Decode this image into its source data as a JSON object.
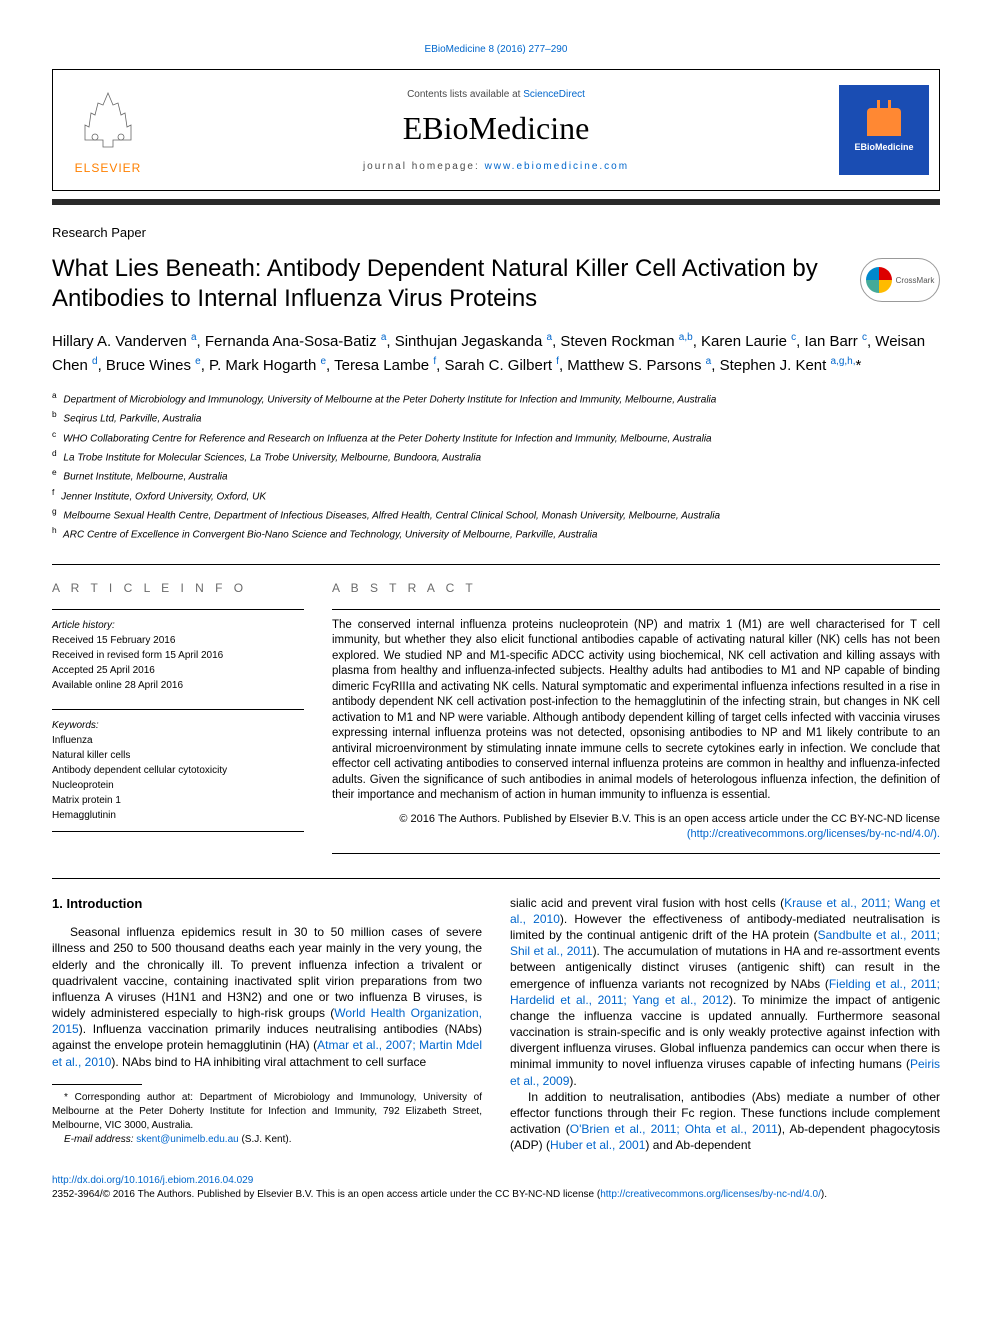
{
  "colors": {
    "link": "#0066cc",
    "text": "#000000",
    "divider_dark": "#2a2a2a",
    "grey_text": "#6a6a6a",
    "elsevier_orange": "#ff8000",
    "journal_logo_bg": "#1a4db3",
    "journal_logo_icon": "#ff8833"
  },
  "top_link": "EBioMedicine 8 (2016) 277–290",
  "header": {
    "contents_prefix": "Contents lists available at ",
    "contents_link": "ScienceDirect",
    "journal_name": "EBioMedicine",
    "homepage_prefix": "journal homepage: ",
    "homepage_link": "www.ebiomedicine.com",
    "elsevier_label": "ELSEVIER",
    "journal_logo_text": "EBioMedicine"
  },
  "article_type": "Research Paper",
  "title": "What Lies Beneath: Antibody Dependent Natural Killer Cell Activation by Antibodies to Internal Influenza Virus Proteins",
  "crossmark_label": "CrossMark",
  "authors_html": "Hillary A. Vanderven <sup>a</sup>, Fernanda Ana-Sosa-Batiz <sup>a</sup>, Sinthujan Jegaskanda <sup>a</sup>, Steven Rockman <sup>a,b</sup>, Karen Laurie <sup>c</sup>, Ian Barr <sup>c</sup>, Weisan Chen <sup>d</sup>, Bruce Wines <sup>e</sup>, P. Mark Hogarth <sup>e</sup>, Teresa Lambe <sup>f</sup>, Sarah C. Gilbert <sup>f</sup>, Matthew S. Parsons <sup>a</sup>, Stephen J. Kent <sup>a,g,h,</sup>*",
  "affiliations": [
    {
      "key": "a",
      "text": "Department of Microbiology and Immunology, University of Melbourne at the Peter Doherty Institute for Infection and Immunity, Melbourne, Australia"
    },
    {
      "key": "b",
      "text": "Seqirus Ltd, Parkville, Australia"
    },
    {
      "key": "c",
      "text": "WHO Collaborating Centre for Reference and Research on Influenza at the Peter Doherty Institute for Infection and Immunity, Melbourne, Australia"
    },
    {
      "key": "d",
      "text": "La Trobe Institute for Molecular Sciences, La Trobe University, Melbourne, Bundoora, Australia"
    },
    {
      "key": "e",
      "text": "Burnet Institute, Melbourne, Australia"
    },
    {
      "key": "f",
      "text": "Jenner Institute, Oxford University, Oxford, UK"
    },
    {
      "key": "g",
      "text": "Melbourne Sexual Health Centre, Department of Infectious Diseases, Alfred Health, Central Clinical School, Monash University, Melbourne, Australia"
    },
    {
      "key": "h",
      "text": "ARC Centre of Excellence in Convergent Bio-Nano Science and Technology, University of Melbourne, Parkville, Australia"
    }
  ],
  "article_info": {
    "heading": "A R T I C L E   I N F O",
    "history_head": "Article history:",
    "history": [
      "Received 15 February 2016",
      "Received in revised form 15 April 2016",
      "Accepted 25 April 2016",
      "Available online 28 April 2016"
    ],
    "keywords_head": "Keywords:",
    "keywords": [
      "Influenza",
      "Natural killer cells",
      "Antibody dependent cellular cytotoxicity",
      "Nucleoprotein",
      "Matrix protein 1",
      "Hemagglutinin"
    ]
  },
  "abstract": {
    "heading": "A B S T R A C T",
    "text": "The conserved internal influenza proteins nucleoprotein (NP) and matrix 1 (M1) are well characterised for T cell immunity, but whether they also elicit functional antibodies capable of activating natural killer (NK) cells has not been explored. We studied NP and M1-specific ADCC activity using biochemical, NK cell activation and killing assays with plasma from healthy and influenza-infected subjects. Healthy adults had antibodies to M1 and NP capable of binding dimeric FcγRIIIa and activating NK cells. Natural symptomatic and experimental influenza infections resulted in a rise in antibody dependent NK cell activation post-infection to the hemagglutinin of the infecting strain, but changes in NK cell activation to M1 and NP were variable. Although antibody dependent killing of target cells infected with vaccinia viruses expressing internal influenza proteins was not detected, opsonising antibodies to NP and M1 likely contribute to an antiviral microenvironment by stimulating innate immune cells to secrete cytokines early in infection. We conclude that effector cell activating antibodies to conserved internal influenza proteins are common in healthy and influenza-infected adults. Given the significance of such antibodies in animal models of heterologous influenza infection, the definition of their importance and mechanism of action in human immunity to influenza is essential.",
    "copyright_line": "© 2016 The Authors. Published by Elsevier B.V. This is an open access article under the CC BY-NC-ND license",
    "license_url_display": "(http://creativecommons.org/licenses/by-nc-nd/4.0/)."
  },
  "body": {
    "section_number_title": "1. Introduction",
    "col1_para1_html": "Seasonal influenza epidemics result in 30 to 50 million cases of severe illness and 250 to 500 thousand deaths each year mainly in the very young, the elderly and the chronically ill. To prevent influenza infection a trivalent or quadrivalent vaccine, containing inactivated split virion preparations from two influenza A viruses (H1N1 and H3N2) and one or two influenza B viruses, is widely administered especially to high-risk groups (<a data-name='ref-link' data-interactable='true'>World Health Organization, 2015</a>). Influenza vaccination primarily induces neutralising antibodies (NAbs) against the envelope protein hemagglutinin (HA) (<a data-name='ref-link' data-interactable='true'>Atmar et al., 2007; Martin Mdel et al., 2010</a>). NAbs bind to HA inhibiting viral attachment to cell surface",
    "col2_para1_html": "sialic acid and prevent viral fusion with host cells (<a data-name='ref-link' data-interactable='true'>Krause et al., 2011; Wang et al., 2010</a>). However the effectiveness of antibody-mediated neutralisation is limited by the continual antigenic drift of the HA protein (<a data-name='ref-link' data-interactable='true'>Sandbulte et al., 2011; Shil et al., 2011</a>). The accumulation of mutations in HA and re-assortment events between antigenically distinct viruses (antigenic shift) can result in the emergence of influenza variants not recognized by NAbs (<a data-name='ref-link' data-interactable='true'>Fielding et al., 2011; Hardelid et al., 2011; Yang et al., 2012</a>). To minimize the impact of antigenic change the influenza vaccine is updated annually. Furthermore seasonal vaccination is strain-specific and is only weakly protective against infection with divergent influenza viruses. Global influenza pandemics can occur when there is minimal immunity to novel influenza viruses capable of infecting humans (<a data-name='ref-link' data-interactable='true'>Peiris et al., 2009</a>).",
    "col2_para2_html": "In addition to neutralisation, antibodies (Abs) mediate a number of other effector functions through their Fc region. These functions include complement activation (<a data-name='ref-link' data-interactable='true'>O'Brien et al., 2011; Ohta et al., 2011</a>), Ab-dependent phagocytosis (ADP) (<a data-name='ref-link' data-interactable='true'>Huber et al., 2001</a>) and Ab-dependent"
  },
  "corresponding": {
    "star": "*",
    "text": "Corresponding author at: Department of Microbiology and Immunology, University of Melbourne at the Peter Doherty Institute for Infection and Immunity, 792 Elizabeth Street, Melbourne, VIC 3000, Australia.",
    "email_label": "E-mail address: ",
    "email": "skent@unimelb.edu.au",
    "email_suffix": " (S.J. Kent)."
  },
  "footer": {
    "doi": "http://dx.doi.org/10.1016/j.ebiom.2016.04.029",
    "issn_line": "2352-3964/© 2016 The Authors. Published by Elsevier B.V. This is an open access article under the CC BY-NC-ND license (",
    "license_url": "http://creativecommons.org/licenses/by-nc-nd/4.0/",
    "issn_suffix": ")."
  }
}
